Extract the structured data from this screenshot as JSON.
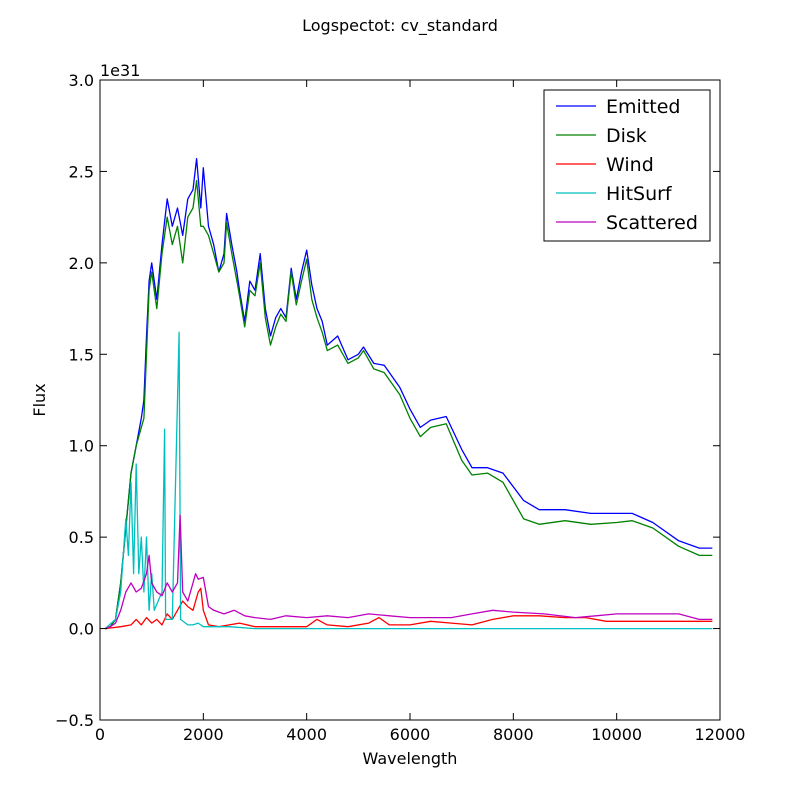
{
  "chart_data": {
    "type": "line",
    "title": "Logspectot: cv_standard",
    "xlabel": "Wavelength",
    "ylabel": "Flux",
    "y_scale_label": "1e31",
    "xlim": [
      0,
      12000
    ],
    "ylim": [
      -0.5,
      3.0
    ],
    "y_multiplier": 1e+31,
    "xticks": [
      0,
      2000,
      4000,
      6000,
      8000,
      10000,
      12000
    ],
    "xtick_labels": [
      "0",
      "2000",
      "4000",
      "6000",
      "8000",
      "10000",
      "12000"
    ],
    "yticks": [
      -0.5,
      0.0,
      0.5,
      1.0,
      1.5,
      2.0,
      2.5,
      3.0
    ],
    "ytick_labels": [
      "−0.5",
      "0.0",
      "0.5",
      "1.0",
      "1.5",
      "2.0",
      "2.5",
      "3.0"
    ],
    "grid": false,
    "legend_position": "top-right",
    "series": [
      {
        "name": "Emitted",
        "color": "#0000ff",
        "points": [
          [
            100,
            0
          ],
          [
            200,
            0.01
          ],
          [
            300,
            0.05
          ],
          [
            400,
            0.25
          ],
          [
            500,
            0.55
          ],
          [
            600,
            0.85
          ],
          [
            700,
            1.0
          ],
          [
            800,
            1.15
          ],
          [
            850,
            1.25
          ],
          [
            900,
            1.6
          ],
          [
            950,
            1.9
          ],
          [
            1000,
            2.0
          ],
          [
            1100,
            1.8
          ],
          [
            1200,
            2.1
          ],
          [
            1300,
            2.35
          ],
          [
            1400,
            2.2
          ],
          [
            1500,
            2.3
          ],
          [
            1600,
            2.15
          ],
          [
            1700,
            2.35
          ],
          [
            1800,
            2.4
          ],
          [
            1870,
            2.57
          ],
          [
            1950,
            2.3
          ],
          [
            2000,
            2.52
          ],
          [
            2100,
            2.2
          ],
          [
            2200,
            2.1
          ],
          [
            2300,
            1.95
          ],
          [
            2400,
            2.05
          ],
          [
            2450,
            2.27
          ],
          [
            2550,
            2.1
          ],
          [
            2650,
            1.95
          ],
          [
            2700,
            1.85
          ],
          [
            2800,
            1.68
          ],
          [
            2900,
            1.9
          ],
          [
            3000,
            1.85
          ],
          [
            3100,
            2.05
          ],
          [
            3200,
            1.75
          ],
          [
            3300,
            1.6
          ],
          [
            3400,
            1.7
          ],
          [
            3500,
            1.75
          ],
          [
            3600,
            1.7
          ],
          [
            3700,
            1.97
          ],
          [
            3800,
            1.8
          ],
          [
            3900,
            1.95
          ],
          [
            4000,
            2.07
          ],
          [
            4100,
            1.88
          ],
          [
            4200,
            1.75
          ],
          [
            4300,
            1.68
          ],
          [
            4400,
            1.55
          ],
          [
            4600,
            1.6
          ],
          [
            4800,
            1.47
          ],
          [
            5000,
            1.5
          ],
          [
            5100,
            1.54
          ],
          [
            5300,
            1.45
          ],
          [
            5500,
            1.44
          ],
          [
            5800,
            1.32
          ],
          [
            6000,
            1.2
          ],
          [
            6200,
            1.1
          ],
          [
            6400,
            1.14
          ],
          [
            6700,
            1.16
          ],
          [
            7000,
            0.98
          ],
          [
            7200,
            0.88
          ],
          [
            7500,
            0.88
          ],
          [
            7800,
            0.85
          ],
          [
            8200,
            0.7
          ],
          [
            8500,
            0.65
          ],
          [
            9000,
            0.65
          ],
          [
            9500,
            0.63
          ],
          [
            10000,
            0.63
          ],
          [
            10300,
            0.63
          ],
          [
            10700,
            0.58
          ],
          [
            11200,
            0.48
          ],
          [
            11600,
            0.44
          ],
          [
            11850,
            0.44
          ]
        ]
      },
      {
        "name": "Disk",
        "color": "#008000",
        "points": [
          [
            100,
            0
          ],
          [
            200,
            0.01
          ],
          [
            300,
            0.05
          ],
          [
            400,
            0.25
          ],
          [
            500,
            0.55
          ],
          [
            600,
            0.85
          ],
          [
            700,
            1.0
          ],
          [
            800,
            1.1
          ],
          [
            850,
            1.15
          ],
          [
            900,
            1.5
          ],
          [
            950,
            1.85
          ],
          [
            1000,
            1.95
          ],
          [
            1100,
            1.75
          ],
          [
            1200,
            2.05
          ],
          [
            1300,
            2.25
          ],
          [
            1400,
            2.1
          ],
          [
            1500,
            2.2
          ],
          [
            1600,
            2.0
          ],
          [
            1700,
            2.25
          ],
          [
            1800,
            2.3
          ],
          [
            1870,
            2.45
          ],
          [
            1950,
            2.2
          ],
          [
            2000,
            2.2
          ],
          [
            2100,
            2.15
          ],
          [
            2200,
            2.05
          ],
          [
            2300,
            1.95
          ],
          [
            2400,
            2.0
          ],
          [
            2450,
            2.22
          ],
          [
            2550,
            2.05
          ],
          [
            2650,
            1.9
          ],
          [
            2700,
            1.82
          ],
          [
            2800,
            1.65
          ],
          [
            2900,
            1.85
          ],
          [
            3000,
            1.82
          ],
          [
            3100,
            2.0
          ],
          [
            3200,
            1.7
          ],
          [
            3300,
            1.55
          ],
          [
            3400,
            1.65
          ],
          [
            3500,
            1.72
          ],
          [
            3600,
            1.68
          ],
          [
            3700,
            1.95
          ],
          [
            3800,
            1.77
          ],
          [
            3900,
            1.9
          ],
          [
            4000,
            2.02
          ],
          [
            4100,
            1.8
          ],
          [
            4200,
            1.7
          ],
          [
            4300,
            1.62
          ],
          [
            4400,
            1.52
          ],
          [
            4600,
            1.55
          ],
          [
            4800,
            1.45
          ],
          [
            5000,
            1.48
          ],
          [
            5100,
            1.52
          ],
          [
            5300,
            1.42
          ],
          [
            5500,
            1.4
          ],
          [
            5800,
            1.28
          ],
          [
            6000,
            1.15
          ],
          [
            6200,
            1.05
          ],
          [
            6400,
            1.1
          ],
          [
            6700,
            1.12
          ],
          [
            7000,
            0.92
          ],
          [
            7200,
            0.84
          ],
          [
            7500,
            0.85
          ],
          [
            7800,
            0.8
          ],
          [
            8200,
            0.6
          ],
          [
            8500,
            0.57
          ],
          [
            9000,
            0.59
          ],
          [
            9500,
            0.57
          ],
          [
            10000,
            0.58
          ],
          [
            10300,
            0.59
          ],
          [
            10700,
            0.55
          ],
          [
            11200,
            0.45
          ],
          [
            11600,
            0.4
          ],
          [
            11850,
            0.4
          ]
        ]
      },
      {
        "name": "Wind",
        "color": "#ff0000",
        "points": [
          [
            100,
            0
          ],
          [
            400,
            0.01
          ],
          [
            600,
            0.02
          ],
          [
            700,
            0.05
          ],
          [
            800,
            0.02
          ],
          [
            900,
            0.06
          ],
          [
            1000,
            0.03
          ],
          [
            1100,
            0.05
          ],
          [
            1200,
            0.02
          ],
          [
            1300,
            0.08
          ],
          [
            1400,
            0.05
          ],
          [
            1500,
            0.1
          ],
          [
            1600,
            0.15
          ],
          [
            1700,
            0.12
          ],
          [
            1800,
            0.1
          ],
          [
            1900,
            0.2
          ],
          [
            1950,
            0.22
          ],
          [
            2000,
            0.1
          ],
          [
            2100,
            0.02
          ],
          [
            2300,
            0.01
          ],
          [
            2500,
            0.02
          ],
          [
            2700,
            0.03
          ],
          [
            3000,
            0.01
          ],
          [
            3500,
            0.01
          ],
          [
            4000,
            0.01
          ],
          [
            4200,
            0.05
          ],
          [
            4400,
            0.02
          ],
          [
            4800,
            0.01
          ],
          [
            5200,
            0.03
          ],
          [
            5400,
            0.06
          ],
          [
            5600,
            0.02
          ],
          [
            6000,
            0.02
          ],
          [
            6400,
            0.04
          ],
          [
            6800,
            0.03
          ],
          [
            7200,
            0.02
          ],
          [
            7600,
            0.05
          ],
          [
            8000,
            0.07
          ],
          [
            8500,
            0.07
          ],
          [
            9000,
            0.06
          ],
          [
            9400,
            0.06
          ],
          [
            9800,
            0.04
          ],
          [
            10400,
            0.04
          ],
          [
            11000,
            0.04
          ],
          [
            11850,
            0.04
          ]
        ]
      },
      {
        "name": "HitSurf",
        "color": "#00bfbf",
        "points": [
          [
            100,
            0
          ],
          [
            300,
            0.05
          ],
          [
            400,
            0.2
          ],
          [
            500,
            0.6
          ],
          [
            550,
            0.4
          ],
          [
            600,
            0.8
          ],
          [
            650,
            0.3
          ],
          [
            700,
            0.9
          ],
          [
            750,
            0.3
          ],
          [
            800,
            0.5
          ],
          [
            850,
            0.2
          ],
          [
            900,
            0.5
          ],
          [
            950,
            0.1
          ],
          [
            1000,
            0.3
          ],
          [
            1050,
            0.1
          ],
          [
            1200,
            0.2
          ],
          [
            1250,
            1.09
          ],
          [
            1270,
            0.05
          ],
          [
            1400,
            0.05
          ],
          [
            1530,
            1.62
          ],
          [
            1560,
            0.05
          ],
          [
            1700,
            0.02
          ],
          [
            1800,
            0.02
          ],
          [
            1900,
            0.03
          ],
          [
            2000,
            0.01
          ],
          [
            2500,
            0.01
          ],
          [
            3000,
            0
          ],
          [
            4000,
            0
          ],
          [
            6000,
            0
          ],
          [
            8000,
            0
          ],
          [
            10000,
            0
          ],
          [
            11850,
            0
          ]
        ]
      },
      {
        "name": "Scattered",
        "color": "#bf00bf",
        "points": [
          [
            100,
            0
          ],
          [
            200,
            0.01
          ],
          [
            300,
            0.03
          ],
          [
            400,
            0.1
          ],
          [
            500,
            0.2
          ],
          [
            600,
            0.25
          ],
          [
            700,
            0.2
          ],
          [
            800,
            0.22
          ],
          [
            900,
            0.3
          ],
          [
            950,
            0.4
          ],
          [
            1000,
            0.25
          ],
          [
            1100,
            0.2
          ],
          [
            1200,
            0.18
          ],
          [
            1300,
            0.25
          ],
          [
            1400,
            0.2
          ],
          [
            1500,
            0.25
          ],
          [
            1550,
            0.62
          ],
          [
            1600,
            0.2
          ],
          [
            1700,
            0.15
          ],
          [
            1800,
            0.25
          ],
          [
            1850,
            0.3
          ],
          [
            1900,
            0.27
          ],
          [
            2000,
            0.28
          ],
          [
            2100,
            0.12
          ],
          [
            2200,
            0.1
          ],
          [
            2400,
            0.08
          ],
          [
            2600,
            0.1
          ],
          [
            2800,
            0.07
          ],
          [
            3000,
            0.06
          ],
          [
            3300,
            0.05
          ],
          [
            3600,
            0.07
          ],
          [
            4000,
            0.06
          ],
          [
            4400,
            0.07
          ],
          [
            4800,
            0.06
          ],
          [
            5200,
            0.08
          ],
          [
            5600,
            0.07
          ],
          [
            6000,
            0.06
          ],
          [
            6400,
            0.06
          ],
          [
            6800,
            0.06
          ],
          [
            7200,
            0.08
          ],
          [
            7600,
            0.1
          ],
          [
            8000,
            0.09
          ],
          [
            8600,
            0.08
          ],
          [
            9200,
            0.06
          ],
          [
            9600,
            0.07
          ],
          [
            10000,
            0.08
          ],
          [
            10600,
            0.08
          ],
          [
            11200,
            0.08
          ],
          [
            11600,
            0.05
          ],
          [
            11850,
            0.05
          ]
        ]
      }
    ]
  }
}
